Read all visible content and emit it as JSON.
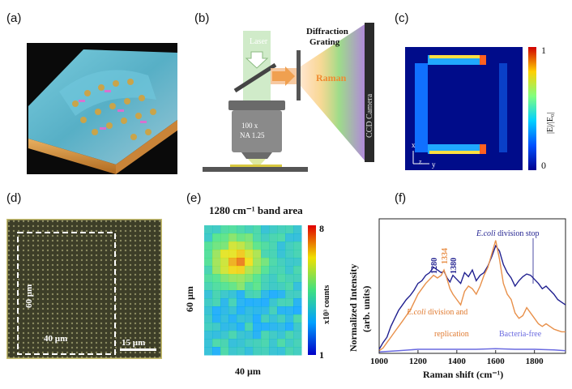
{
  "figure": {
    "panel_labels": [
      "(a)",
      "(b)",
      "(c)",
      "(d)",
      "(e)",
      "(f)"
    ]
  },
  "panel_b": {
    "laser": "Laser",
    "grating_line1": "Diffraction",
    "grating_line2": "Grating",
    "raman": "Raman",
    "camera": "CCD Camera",
    "objective_line1": "100 x",
    "objective_line2": "NA 1.25"
  },
  "panel_c": {
    "colorbar_max": "1",
    "colorbar_min": "0",
    "colorbar_label": "|E|/|E₀|",
    "axis_x": "x",
    "axis_z": "z",
    "axis_y": "y"
  },
  "panel_d": {
    "height_label": "60 µm",
    "width_label": "40 µm",
    "scale_label": "15 µm"
  },
  "panel_e": {
    "title": "1280 cm⁻¹  band area",
    "ylabel": "60 µm",
    "xlabel": "40 µm",
    "colorbar_max": "8",
    "colorbar_min": "1",
    "colorbar_label": "x10³ counts"
  },
  "chart_data": {
    "type": "line",
    "title": "",
    "xlabel": "Raman shift (cm⁻¹)",
    "ylabel_line1": "Normalized Intensity",
    "ylabel_line2": "(arb. units)",
    "xlim": [
      1000,
      1960
    ],
    "ylim": [
      0,
      1
    ],
    "x_ticks": [
      1000,
      1200,
      1400,
      1600,
      1800
    ],
    "x_tick_labels": [
      "1000",
      "1200",
      "1400",
      "1600",
      "1800"
    ],
    "series": [
      {
        "name": "E.coli division stop",
        "color": "#1f1f8f",
        "x": [
          1000,
          1020,
          1040,
          1060,
          1080,
          1100,
          1120,
          1140,
          1160,
          1180,
          1200,
          1220,
          1240,
          1260,
          1280,
          1300,
          1320,
          1334,
          1350,
          1365,
          1380,
          1400,
          1420,
          1440,
          1460,
          1480,
          1500,
          1520,
          1540,
          1560,
          1580,
          1600,
          1620,
          1640,
          1660,
          1680,
          1700,
          1720,
          1740,
          1760,
          1780,
          1800,
          1820,
          1840,
          1860,
          1880,
          1900,
          1920,
          1940,
          1960
        ],
        "y": [
          0.03,
          0.08,
          0.12,
          0.2,
          0.26,
          0.32,
          0.36,
          0.4,
          0.43,
          0.47,
          0.52,
          0.54,
          0.58,
          0.6,
          0.64,
          0.62,
          0.6,
          0.61,
          0.56,
          0.53,
          0.58,
          0.55,
          0.52,
          0.6,
          0.57,
          0.62,
          0.54,
          0.58,
          0.6,
          0.65,
          0.72,
          0.8,
          0.76,
          0.66,
          0.6,
          0.56,
          0.5,
          0.54,
          0.57,
          0.59,
          0.58,
          0.55,
          0.52,
          0.48,
          0.5,
          0.47,
          0.44,
          0.4,
          0.38,
          0.36
        ]
      },
      {
        "name": "E.coli division and replication",
        "color": "#e8904a",
        "x": [
          1000,
          1020,
          1040,
          1060,
          1080,
          1100,
          1120,
          1140,
          1160,
          1180,
          1200,
          1220,
          1240,
          1260,
          1280,
          1300,
          1320,
          1334,
          1350,
          1365,
          1380,
          1400,
          1420,
          1440,
          1460,
          1480,
          1500,
          1520,
          1540,
          1560,
          1580,
          1600,
          1620,
          1640,
          1660,
          1680,
          1700,
          1720,
          1740,
          1760,
          1780,
          1800,
          1820,
          1840,
          1860,
          1880,
          1900,
          1920,
          1940,
          1960
        ],
        "y": [
          0.02,
          0.04,
          0.08,
          0.12,
          0.16,
          0.2,
          0.24,
          0.28,
          0.32,
          0.38,
          0.44,
          0.48,
          0.52,
          0.55,
          0.58,
          0.56,
          0.58,
          0.62,
          0.55,
          0.48,
          0.44,
          0.4,
          0.36,
          0.46,
          0.5,
          0.48,
          0.44,
          0.5,
          0.58,
          0.64,
          0.74,
          0.84,
          0.7,
          0.52,
          0.44,
          0.4,
          0.3,
          0.26,
          0.28,
          0.34,
          0.3,
          0.26,
          0.22,
          0.2,
          0.22,
          0.2,
          0.18,
          0.17,
          0.16,
          0.16
        ]
      },
      {
        "name": "Bacteria-free",
        "color": "#6a6ae0",
        "x": [
          1000,
          1100,
          1200,
          1300,
          1400,
          1500,
          1600,
          1700,
          1800,
          1900,
          1960
        ],
        "y": [
          0.01,
          0.02,
          0.03,
          0.03,
          0.03,
          0.03,
          0.035,
          0.03,
          0.03,
          0.025,
          0.02
        ]
      }
    ],
    "annotations": [
      {
        "text": "1280",
        "x": 1280,
        "color": "#1f1f8f"
      },
      {
        "text": "1334",
        "x": 1334,
        "color": "#e8904a"
      },
      {
        "text": "1380",
        "x": 1380,
        "color": "#1f1f8f"
      }
    ],
    "legend": {
      "stop_prefix": "E.coli",
      "stop_suffix": " division stop",
      "div_prefix": "E.coli",
      "div_suffix": " division and",
      "div_line2": "replication",
      "free": "Bacteria-free"
    }
  },
  "colors": {
    "blue_dark": "#1f1f8f",
    "orange": "#e8904a",
    "light_blue": "#6a6ae0"
  }
}
